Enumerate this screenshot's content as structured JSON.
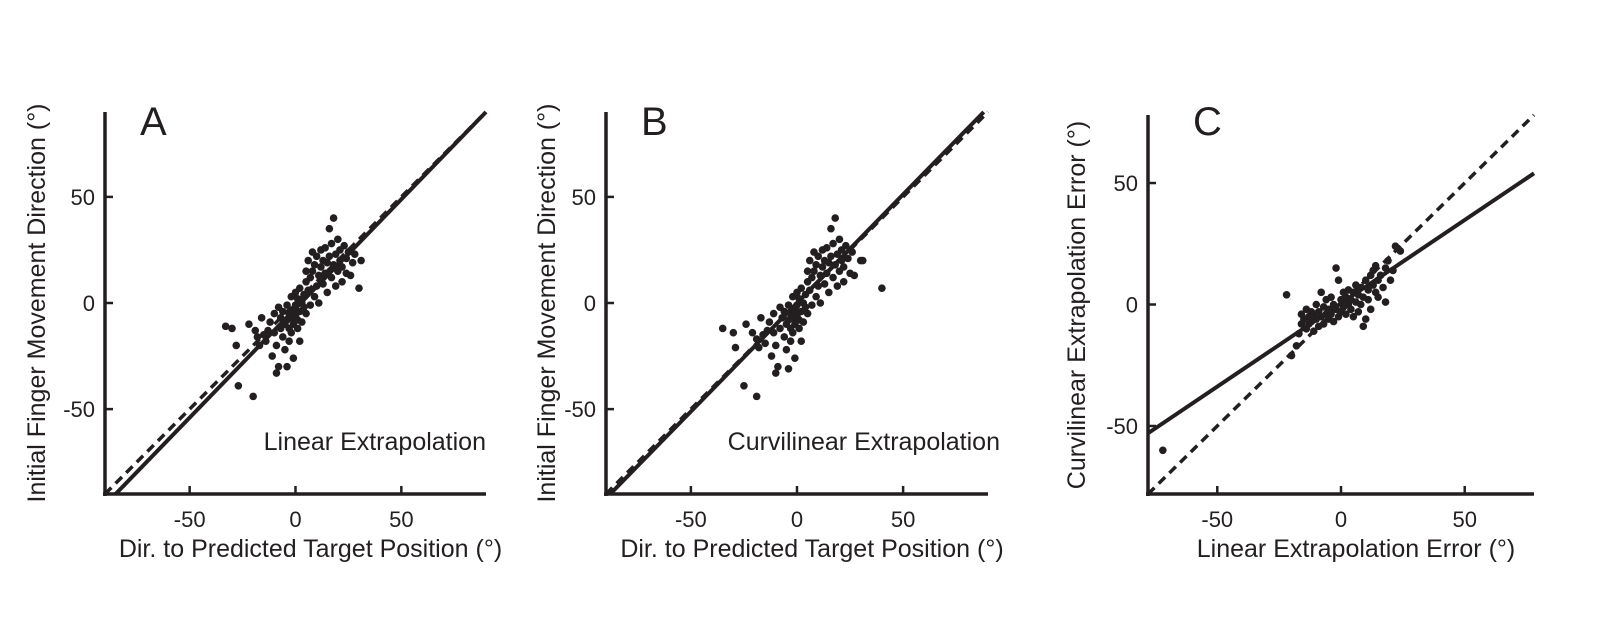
{
  "chart_data": [
    {
      "type": "scatter",
      "panel_label": "A",
      "annotation": "Linear Extrapolation",
      "xlabel": "Dir. to Predicted Target Position (°)",
      "ylabel": "Initial Finger Movement Direction (°)",
      "xlim": [
        -90,
        90
      ],
      "ylim": [
        -90,
        90
      ],
      "xticks": [
        -50,
        0,
        50
      ],
      "yticks": [
        -50,
        0,
        50
      ],
      "grid": false,
      "lines": [
        {
          "style": "solid",
          "points": [
            [
              -85,
              -90
            ],
            [
              90,
              90
            ]
          ]
        },
        {
          "style": "dashed",
          "points": [
            [
              -90,
              -90
            ],
            [
              90,
              90
            ]
          ]
        }
      ],
      "points": [
        [
          -33,
          -11
        ],
        [
          -30,
          -12
        ],
        [
          -28,
          -20
        ],
        [
          -27,
          -39
        ],
        [
          -20,
          -44
        ],
        [
          -22,
          -10
        ],
        [
          -19,
          -13
        ],
        [
          -18,
          -16
        ],
        [
          -17,
          -20
        ],
        [
          -16,
          -7
        ],
        [
          -15,
          -15
        ],
        [
          -14,
          -18
        ],
        [
          -13,
          -13
        ],
        [
          -12,
          -9
        ],
        [
          -11,
          -25
        ],
        [
          -10,
          -5
        ],
        [
          -10,
          -14
        ],
        [
          -9,
          -20
        ],
        [
          -9,
          -33
        ],
        [
          -8,
          -30
        ],
        [
          -8,
          -2
        ],
        [
          -7,
          -12
        ],
        [
          -7,
          -7
        ],
        [
          -6,
          -4
        ],
        [
          -6,
          -16
        ],
        [
          -5,
          -22
        ],
        [
          -5,
          -10
        ],
        [
          -4,
          -1
        ],
        [
          -4,
          -8
        ],
        [
          -4,
          -30
        ],
        [
          -3,
          -12
        ],
        [
          -3,
          -5
        ],
        [
          -3,
          -18
        ],
        [
          -2,
          3
        ],
        [
          -2,
          -7
        ],
        [
          -2,
          -14
        ],
        [
          -1,
          -3
        ],
        [
          -1,
          -10
        ],
        [
          -1,
          -26
        ],
        [
          0,
          -6
        ],
        [
          0,
          -1
        ],
        [
          0,
          5
        ],
        [
          1,
          -12
        ],
        [
          1,
          -8
        ],
        [
          1,
          2
        ],
        [
          2,
          -4
        ],
        [
          2,
          -18
        ],
        [
          2,
          7
        ],
        [
          3,
          0
        ],
        [
          3,
          -9
        ],
        [
          4,
          4
        ],
        [
          4,
          -2
        ],
        [
          5,
          10
        ],
        [
          5,
          15
        ],
        [
          5,
          -5
        ],
        [
          6,
          6
        ],
        [
          6,
          20
        ],
        [
          7,
          -1
        ],
        [
          7,
          12
        ],
        [
          8,
          15
        ],
        [
          8,
          24
        ],
        [
          9,
          3
        ],
        [
          9,
          18
        ],
        [
          10,
          8
        ],
        [
          10,
          22
        ],
        [
          11,
          13
        ],
        [
          11,
          0
        ],
        [
          12,
          17
        ],
        [
          12,
          25
        ],
        [
          13,
          9
        ],
        [
          13,
          20
        ],
        [
          14,
          14
        ],
        [
          14,
          26
        ],
        [
          15,
          5
        ],
        [
          15,
          19
        ],
        [
          16,
          22
        ],
        [
          16,
          35
        ],
        [
          17,
          12
        ],
        [
          17,
          28
        ],
        [
          18,
          18
        ],
        [
          18,
          40
        ],
        [
          19,
          8
        ],
        [
          19,
          23
        ],
        [
          20,
          15
        ],
        [
          20,
          30
        ],
        [
          21,
          20
        ],
        [
          21,
          25
        ],
        [
          22,
          10
        ],
        [
          22,
          17
        ],
        [
          23,
          27
        ],
        [
          24,
          21
        ],
        [
          24,
          14
        ],
        [
          25,
          24
        ],
        [
          26,
          13
        ],
        [
          27,
          19
        ],
        [
          28,
          23
        ],
        [
          30,
          7
        ],
        [
          31,
          20
        ]
      ]
    },
    {
      "type": "scatter",
      "panel_label": "B",
      "annotation": "Curvilinear Extrapolation",
      "xlabel": "Dir. to Predicted Target Position (°)",
      "ylabel": "Initial Finger Movement Direction (°)",
      "xlim": [
        -90,
        90
      ],
      "ylim": [
        -90,
        90
      ],
      "xticks": [
        -50,
        0,
        50
      ],
      "yticks": [
        -50,
        0,
        50
      ],
      "grid": false,
      "lines": [
        {
          "style": "solid",
          "points": [
            [
              -88,
              -90
            ],
            [
              88,
              90
            ]
          ]
        },
        {
          "style": "dashed",
          "points": [
            [
              -90,
              -90
            ],
            [
              90,
              90
            ]
          ]
        }
      ],
      "points": [
        [
          -35,
          -12
        ],
        [
          -30,
          -14
        ],
        [
          -29,
          -21
        ],
        [
          -25,
          -39
        ],
        [
          -19,
          -44
        ],
        [
          -24,
          -10
        ],
        [
          -21,
          -14
        ],
        [
          -19,
          -17
        ],
        [
          -18,
          -21
        ],
        [
          -17,
          -7
        ],
        [
          -16,
          -15
        ],
        [
          -15,
          -19
        ],
        [
          -14,
          -13
        ],
        [
          -13,
          -9
        ],
        [
          -12,
          -25
        ],
        [
          -11,
          -5
        ],
        [
          -11,
          -14
        ],
        [
          -10,
          -20
        ],
        [
          -10,
          -33
        ],
        [
          -9,
          -30
        ],
        [
          -8,
          -2
        ],
        [
          -8,
          -12
        ],
        [
          -7,
          -7
        ],
        [
          -6,
          -4
        ],
        [
          -6,
          -16
        ],
        [
          -5,
          -22
        ],
        [
          -5,
          -10
        ],
        [
          -4,
          -1
        ],
        [
          -4,
          -8
        ],
        [
          -4,
          -31
        ],
        [
          -3,
          -12
        ],
        [
          -3,
          -5
        ],
        [
          -3,
          -18
        ],
        [
          -2,
          3
        ],
        [
          -2,
          -7
        ],
        [
          -2,
          -14
        ],
        [
          -1,
          -3
        ],
        [
          -1,
          -10
        ],
        [
          -1,
          -26
        ],
        [
          0,
          -6
        ],
        [
          0,
          -1
        ],
        [
          0,
          5
        ],
        [
          1,
          -12
        ],
        [
          1,
          -8
        ],
        [
          1,
          2
        ],
        [
          2,
          -4
        ],
        [
          2,
          -18
        ],
        [
          2,
          7
        ],
        [
          3,
          0
        ],
        [
          3,
          -9
        ],
        [
          4,
          4
        ],
        [
          4,
          -2
        ],
        [
          5,
          10
        ],
        [
          5,
          15
        ],
        [
          5,
          -5
        ],
        [
          6,
          6
        ],
        [
          6,
          20
        ],
        [
          7,
          -1
        ],
        [
          7,
          12
        ],
        [
          8,
          15
        ],
        [
          8,
          24
        ],
        [
          9,
          3
        ],
        [
          9,
          18
        ],
        [
          10,
          8
        ],
        [
          10,
          22
        ],
        [
          11,
          13
        ],
        [
          11,
          0
        ],
        [
          12,
          17
        ],
        [
          12,
          25
        ],
        [
          13,
          9
        ],
        [
          13,
          20
        ],
        [
          14,
          14
        ],
        [
          14,
          26
        ],
        [
          15,
          5
        ],
        [
          15,
          19
        ],
        [
          16,
          22
        ],
        [
          16,
          35
        ],
        [
          17,
          12
        ],
        [
          17,
          28
        ],
        [
          18,
          18
        ],
        [
          18,
          40
        ],
        [
          19,
          8
        ],
        [
          19,
          23
        ],
        [
          20,
          15
        ],
        [
          20,
          30
        ],
        [
          21,
          20
        ],
        [
          21,
          25
        ],
        [
          22,
          10
        ],
        [
          22,
          17
        ],
        [
          23,
          27
        ],
        [
          24,
          21
        ],
        [
          25,
          14
        ],
        [
          26,
          24
        ],
        [
          27,
          13
        ],
        [
          30,
          20
        ],
        [
          31,
          20
        ],
        [
          40,
          7
        ]
      ]
    },
    {
      "type": "scatter",
      "panel_label": "C",
      "annotation": "",
      "xlabel": "Linear Extrapolation Error (°)",
      "ylabel": "Curvilinear Extrapolation Error (°)",
      "xlim": [
        -78,
        78
      ],
      "ylim": [
        -78,
        78
      ],
      "xticks": [
        -50,
        0,
        50
      ],
      "yticks": [
        -50,
        0,
        50
      ],
      "grid": false,
      "lines": [
        {
          "style": "solid",
          "points": [
            [
              -78,
              -53
            ],
            [
              78,
              54
            ]
          ]
        },
        {
          "style": "dashed",
          "points": [
            [
              -78,
              -78
            ],
            [
              78,
              78
            ]
          ]
        }
      ],
      "points": [
        [
          -72,
          -60
        ],
        [
          -22,
          4
        ],
        [
          -20,
          -21
        ],
        [
          -18,
          -17
        ],
        [
          -17,
          -12
        ],
        [
          -16,
          -8
        ],
        [
          -16,
          -4
        ],
        [
          -15,
          -6
        ],
        [
          -14,
          -10
        ],
        [
          -14,
          -2
        ],
        [
          -13,
          -5
        ],
        [
          -13,
          -8
        ],
        [
          -12,
          -3
        ],
        [
          -12,
          -7
        ],
        [
          -11,
          -11
        ],
        [
          -11,
          -4
        ],
        [
          -10,
          -6
        ],
        [
          -10,
          0
        ],
        [
          -9,
          -9
        ],
        [
          -9,
          -3
        ],
        [
          -8,
          5
        ],
        [
          -8,
          -5
        ],
        [
          -7,
          -1
        ],
        [
          -7,
          -8
        ],
        [
          -6,
          -4
        ],
        [
          -6,
          2
        ],
        [
          -5,
          -6
        ],
        [
          -5,
          -2
        ],
        [
          -4,
          3
        ],
        [
          -4,
          -4
        ],
        [
          -3,
          -7
        ],
        [
          -3,
          0
        ],
        [
          -2,
          15
        ],
        [
          -2,
          -2
        ],
        [
          -1,
          10
        ],
        [
          -1,
          -5
        ],
        [
          0,
          2
        ],
        [
          0,
          -3
        ],
        [
          1,
          5
        ],
        [
          1,
          -1
        ],
        [
          2,
          -4
        ],
        [
          2,
          3
        ],
        [
          3,
          0
        ],
        [
          3,
          6
        ],
        [
          4,
          -2
        ],
        [
          4,
          2
        ],
        [
          5,
          5
        ],
        [
          5,
          -5
        ],
        [
          6,
          1
        ],
        [
          6,
          8
        ],
        [
          7,
          4
        ],
        [
          7,
          -3
        ],
        [
          8,
          7
        ],
        [
          8,
          0
        ],
        [
          9,
          -9
        ],
        [
          9,
          3
        ],
        [
          10,
          10
        ],
        [
          10,
          -6
        ],
        [
          11,
          6
        ],
        [
          11,
          2
        ],
        [
          12,
          12
        ],
        [
          12,
          -2
        ],
        [
          13,
          8
        ],
        [
          13,
          14
        ],
        [
          14,
          5
        ],
        [
          14,
          16
        ],
        [
          15,
          10
        ],
        [
          15,
          3
        ],
        [
          16,
          12
        ],
        [
          17,
          7
        ],
        [
          18,
          15
        ],
        [
          18,
          1
        ],
        [
          19,
          18
        ],
        [
          20,
          10
        ],
        [
          21,
          14
        ],
        [
          22,
          24
        ],
        [
          24,
          22
        ]
      ]
    }
  ]
}
